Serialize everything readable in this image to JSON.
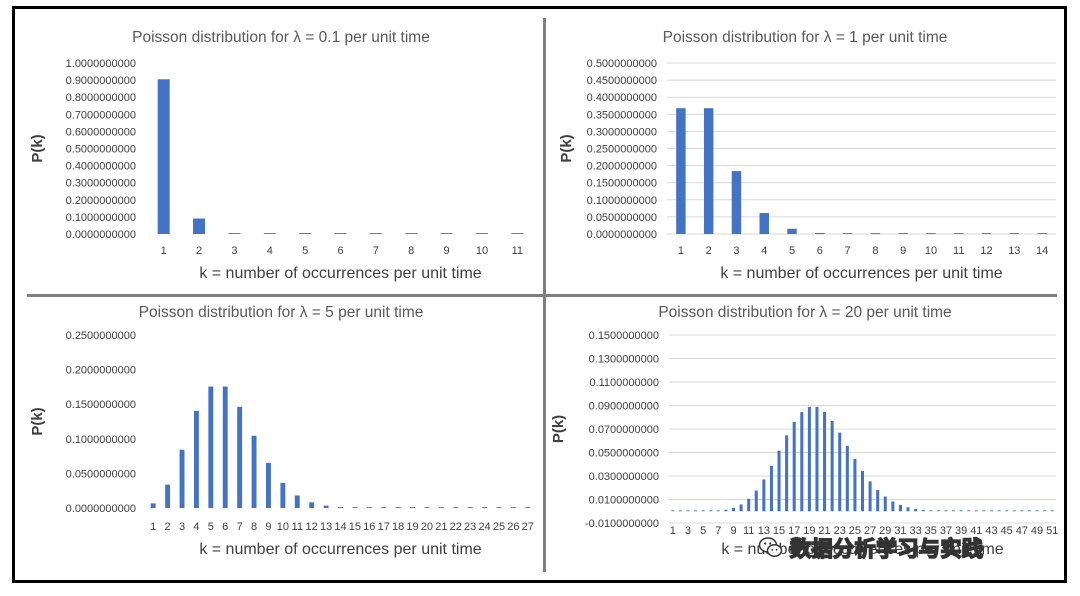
{
  "chart_data": [
    {
      "type": "bar",
      "title": "Poisson distribution for λ = 0.1 per unit time",
      "xlabel": "k = number of occurrences per unit time",
      "ylabel": "P(k)",
      "categories": [
        "1",
        "2",
        "3",
        "4",
        "5",
        "6",
        "7",
        "8",
        "9",
        "10",
        "11"
      ],
      "values": [
        0.904837418,
        0.0904837418,
        0.0045241871,
        0.0001508062,
        3.7702e-06,
        7.54e-08,
        1.3e-09,
        0.0,
        0.0,
        0.0,
        0.0
      ],
      "ylim": [
        0,
        1.0
      ],
      "yticks": [
        0,
        0.1,
        0.2,
        0.3,
        0.4,
        0.5,
        0.6,
        0.7,
        0.8,
        0.9,
        1.0
      ],
      "ytick_labels": [
        "0.0000000000",
        "0.1000000000",
        "0.2000000000",
        "0.3000000000",
        "0.4000000000",
        "0.5000000000",
        "0.6000000000",
        "0.7000000000",
        "0.8000000000",
        "0.9000000000",
        "1.0000000000"
      ],
      "grid": false
    },
    {
      "type": "bar",
      "title": "Poisson distribution for λ = 1 per unit time",
      "xlabel": "k = number of occurrences per unit time",
      "ylabel": "P(k)",
      "categories": [
        "1",
        "2",
        "3",
        "4",
        "5",
        "6",
        "7",
        "8",
        "9",
        "10",
        "11",
        "12",
        "13",
        "14"
      ],
      "values": [
        0.3678794412,
        0.3678794412,
        0.1839397206,
        0.0613132402,
        0.01532831,
        0.003065662,
        0.0005109437,
        7.2992e-05,
        9.124e-06,
        1.0138e-06,
        1.014e-07,
        9.2e-09,
        8e-10,
        1e-10
      ],
      "ylim": [
        0,
        0.5
      ],
      "yticks": [
        0,
        0.05,
        0.1,
        0.15,
        0.2,
        0.25,
        0.3,
        0.35,
        0.4,
        0.45,
        0.5
      ],
      "ytick_labels": [
        "0.0000000000",
        "0.0500000000",
        "0.1000000000",
        "0.1500000000",
        "0.2000000000",
        "0.2500000000",
        "0.3000000000",
        "0.3500000000",
        "0.4000000000",
        "0.4500000000",
        "0.5000000000"
      ],
      "grid": true
    },
    {
      "type": "bar",
      "title": "Poisson distribution for λ = 5 per unit time",
      "xlabel": "k = number of occurrences per unit time",
      "ylabel": "P(k)",
      "categories": [
        "1",
        "2",
        "3",
        "4",
        "5",
        "6",
        "7",
        "8",
        "9",
        "10",
        "11",
        "12",
        "13",
        "14",
        "15",
        "16",
        "17",
        "18",
        "19",
        "20",
        "21",
        "22",
        "23",
        "24",
        "25",
        "26",
        "27"
      ],
      "values": [
        0.0067,
        0.0337,
        0.0842,
        0.1404,
        0.1755,
        0.1755,
        0.1462,
        0.1044,
        0.0653,
        0.0363,
        0.0181,
        0.0082,
        0.0034,
        0.0013,
        0.0005,
        0.0002,
        0.0001,
        0.0,
        0.0,
        0.0,
        0.0,
        0.0,
        0.0,
        0.0,
        0.0,
        0.0,
        0.0
      ],
      "ylim": [
        0,
        0.25
      ],
      "yticks": [
        0,
        0.05,
        0.1,
        0.15,
        0.2,
        0.25
      ],
      "ytick_labels": [
        "0.0000000000",
        "0.0500000000",
        "0.1000000000",
        "0.1500000000",
        "0.2000000000",
        "0.2500000000"
      ],
      "grid": false
    },
    {
      "type": "bar",
      "title": "Poisson distribution for λ = 20 per unit time",
      "xlabel": "k = number of occurrences per unit time",
      "ylabel": "P(k)",
      "categories": [
        "1",
        "2",
        "3",
        "4",
        "5",
        "6",
        "7",
        "8",
        "9",
        "10",
        "11",
        "12",
        "13",
        "14",
        "15",
        "16",
        "17",
        "18",
        "19",
        "20",
        "21",
        "22",
        "23",
        "24",
        "25",
        "26",
        "27",
        "28",
        "29",
        "30",
        "31",
        "32",
        "33",
        "34",
        "35",
        "36",
        "37",
        "38",
        "39",
        "40",
        "41",
        "42",
        "43",
        "44",
        "45",
        "46",
        "47",
        "48",
        "49",
        "50",
        "51"
      ],
      "values": [
        0.0,
        0.0,
        0.0,
        0.0,
        0.0001,
        0.0002,
        0.0005,
        0.0013,
        0.0029,
        0.0058,
        0.0106,
        0.0176,
        0.0271,
        0.0387,
        0.0516,
        0.0646,
        0.076,
        0.0844,
        0.0888,
        0.0888,
        0.0846,
        0.0769,
        0.0669,
        0.0557,
        0.0446,
        0.0343,
        0.0254,
        0.0181,
        0.0125,
        0.0083,
        0.0054,
        0.0034,
        0.002,
        0.0012,
        0.0007,
        0.0004,
        0.0002,
        0.0001,
        0.0001,
        0.0,
        0.0,
        0.0,
        0.0,
        0.0,
        0.0,
        0.0,
        0.0,
        0.0,
        0.0,
        0.0,
        0.0
      ],
      "ylim": [
        -0.01,
        0.15
      ],
      "yticks": [
        -0.01,
        0.01,
        0.03,
        0.05,
        0.07,
        0.09,
        0.11,
        0.13,
        0.15
      ],
      "ytick_labels": [
        "-0.0100000000",
        "0.0100000000",
        "0.0300000000",
        "0.0500000000",
        "0.0700000000",
        "0.0900000000",
        "0.1100000000",
        "0.1300000000",
        "0.1500000000"
      ],
      "tick_label_step": 2,
      "grid": true
    }
  ],
  "watermark": {
    "text": "数据分析学习与实践",
    "icon": "wechat-icon"
  }
}
